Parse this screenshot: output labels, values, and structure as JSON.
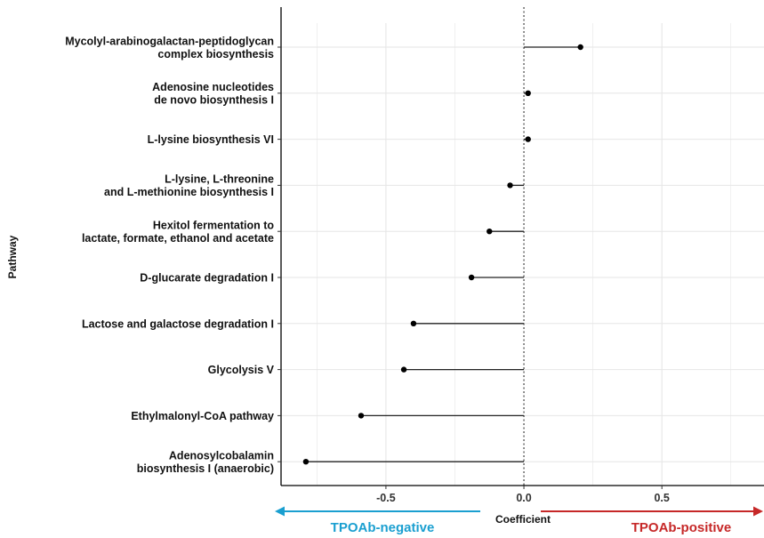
{
  "chart_data": {
    "type": "lollipop",
    "orientation": "horizontal",
    "categories": [
      [
        "Mycolyl-arabinogalactan-peptidoglycan",
        "complex biosynthesis"
      ],
      [
        "Adenosine nucleotides",
        "de novo biosynthesis I"
      ],
      [
        "L-lysine biosynthesis VI"
      ],
      [
        "L-lysine, L-threonine",
        "and L-methionine biosynthesis I"
      ],
      [
        "Hexitol fermentation to",
        "lactate, formate, ethanol and acetate"
      ],
      [
        "D-glucarate degradation I"
      ],
      [
        "Lactose and galactose degradation I"
      ],
      [
        "Glycolysis V"
      ],
      [
        "Ethylmalonyl-CoA pathway"
      ],
      [
        "Adenosylcobalamin",
        "biosynthesis I (anaerobic)"
      ]
    ],
    "values": [
      0.205,
      0.015,
      0.015,
      -0.05,
      -0.125,
      -0.19,
      -0.4,
      -0.435,
      -0.59,
      -0.79
    ],
    "xlabel": "Coefficient",
    "ylabel": "Pathway",
    "xlim": [
      -0.88,
      0.87
    ],
    "xticks": [
      -0.5,
      0.0,
      0.5
    ],
    "xtick_labels": [
      "-0.5",
      "0.0",
      "0.5"
    ],
    "reference_line": 0,
    "grid": true,
    "direction_labels": {
      "negative": "TPOAb-negative",
      "positive": "TPOAb-positive"
    },
    "colors": {
      "negative": "#1a9fd0",
      "positive": "#c62828",
      "points": "#000000",
      "grid": "#e6e6e6"
    }
  }
}
